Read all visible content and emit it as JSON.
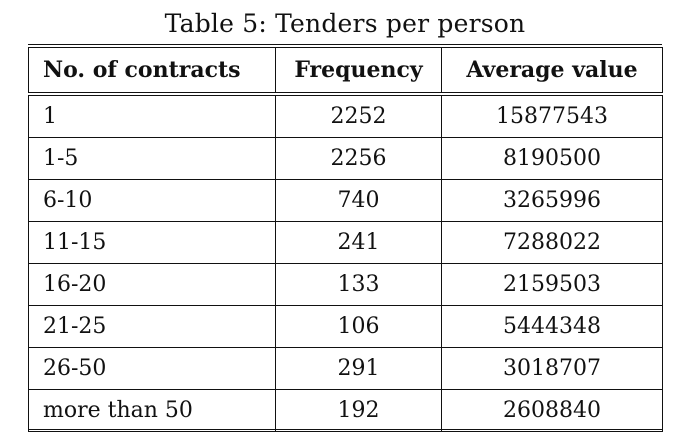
{
  "caption": "Table 5: Tenders per person",
  "table": {
    "headers": [
      "No. of contracts",
      "Frequency",
      "Average value"
    ],
    "rows": [
      [
        "1",
        "2252",
        "15877543"
      ],
      [
        "1-5",
        "2256",
        "8190500"
      ],
      [
        "6-10",
        "740",
        "3265996"
      ],
      [
        "11-15",
        "241",
        "7288022"
      ],
      [
        "16-20",
        "133",
        "2159503"
      ],
      [
        "21-25",
        "106",
        "5444348"
      ],
      [
        "26-50",
        "291",
        "3018707"
      ],
      [
        "more than 50",
        "192",
        "2608840"
      ]
    ]
  }
}
